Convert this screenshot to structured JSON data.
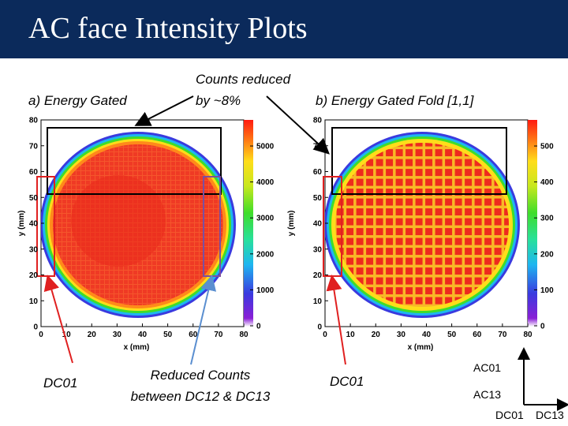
{
  "title": "AC face Intensity Plots",
  "labels": {
    "plot_a": "a) Energy Gated",
    "counts_line1": "Counts reduced",
    "counts_line2": "by ~8%",
    "plot_b": "b) Energy Gated Fold [1,1]",
    "dc01_left": "DC01",
    "reduced_line1": "Reduced Counts",
    "reduced_line2": "between DC12 & DC13",
    "dc01_right": "DC01"
  },
  "axes_legend": {
    "ac01": "AC01",
    "ac13": "AC13",
    "dc01": "DC01",
    "dc13": "DC13"
  },
  "plots": [
    {
      "xlabel": "x (mm)",
      "ylabel": "y (mm)",
      "xticks": [
        "0",
        "10",
        "20",
        "30",
        "40",
        "50",
        "60",
        "70",
        "80"
      ],
      "yticks": [
        "0",
        "10",
        "20",
        "30",
        "40",
        "50",
        "60",
        "70",
        "80"
      ],
      "colorbar_ticks": [
        "0",
        "1000",
        "2000",
        "3000",
        "4000",
        "5000"
      ]
    },
    {
      "xlabel": "x (mm)",
      "ylabel": "y (mm)",
      "xticks": [
        "0",
        "10",
        "20",
        "30",
        "40",
        "50",
        "60",
        "70",
        "80"
      ],
      "yticks": [
        "0",
        "10",
        "20",
        "30",
        "40",
        "50",
        "60",
        "70",
        "80"
      ],
      "colorbar_ticks": [
        "0",
        "100",
        "200",
        "300",
        "400",
        "500"
      ]
    }
  ],
  "colors": {
    "title_bg": "#0b2a5b",
    "arrow_red": "#e02020",
    "arrow_blue": "#5b8fd0",
    "box_red": "#e02020",
    "box_purple": "#7b4fa0"
  }
}
